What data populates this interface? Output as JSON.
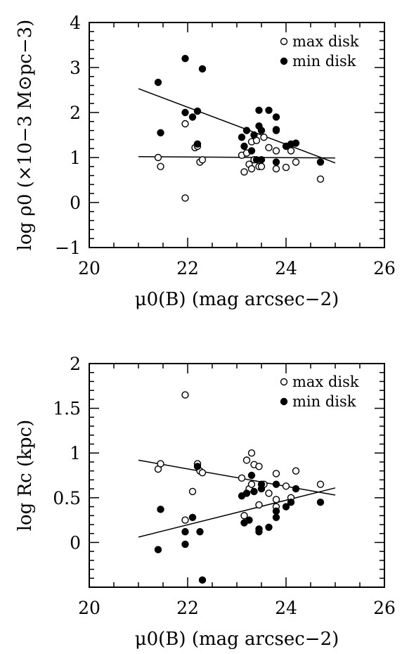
{
  "chart_data": [
    {
      "type": "scatter",
      "xlabel": "μ0(B) (mag arcsec−2)",
      "ylabel": "log ρ0 (×10−3 M⊙pc−3)",
      "xlim": [
        20,
        26
      ],
      "ylim": [
        -1,
        4
      ],
      "x_ticks": [
        "20",
        "22",
        "24",
        "26"
      ],
      "y_ticks": [
        "−1",
        "0",
        "1",
        "2",
        "3",
        "4"
      ],
      "legend_position": "top-right",
      "series": [
        {
          "name": "max disk",
          "marker": "open-circle",
          "points": [
            [
              21.4,
              1.0
            ],
            [
              21.45,
              0.8
            ],
            [
              21.95,
              1.75
            ],
            [
              21.95,
              0.1
            ],
            [
              22.15,
              1.22
            ],
            [
              22.2,
              1.25
            ],
            [
              22.25,
              0.9
            ],
            [
              22.3,
              0.95
            ],
            [
              23.1,
              1.05
            ],
            [
              23.15,
              0.68
            ],
            [
              23.2,
              1.1
            ],
            [
              23.25,
              0.85
            ],
            [
              23.3,
              1.35
            ],
            [
              23.3,
              0.75
            ],
            [
              23.35,
              0.95
            ],
            [
              23.4,
              1.38
            ],
            [
              23.45,
              0.8
            ],
            [
              23.5,
              0.8
            ],
            [
              23.55,
              1.45
            ],
            [
              23.65,
              1.22
            ],
            [
              23.8,
              1.62
            ],
            [
              23.8,
              1.15
            ],
            [
              23.8,
              0.75
            ],
            [
              24.0,
              0.78
            ],
            [
              24.1,
              1.15
            ],
            [
              24.2,
              0.9
            ],
            [
              24.7,
              0.52
            ]
          ]
        },
        {
          "name": "min disk",
          "marker": "filled-circle",
          "points": [
            [
              21.4,
              2.67
            ],
            [
              21.45,
              1.55
            ],
            [
              21.95,
              3.2
            ],
            [
              21.95,
              2.0
            ],
            [
              22.1,
              1.9
            ],
            [
              22.2,
              2.03
            ],
            [
              22.2,
              1.3
            ],
            [
              22.3,
              2.97
            ],
            [
              23.1,
              1.45
            ],
            [
              23.15,
              1.25
            ],
            [
              23.2,
              1.6
            ],
            [
              23.3,
              1.15
            ],
            [
              23.35,
              1.5
            ],
            [
              23.4,
              0.95
            ],
            [
              23.45,
              1.7
            ],
            [
              23.45,
              2.05
            ],
            [
              23.5,
              1.6
            ],
            [
              23.5,
              0.95
            ],
            [
              23.65,
              2.05
            ],
            [
              23.8,
              1.9
            ],
            [
              23.8,
              1.6
            ],
            [
              23.8,
              0.9
            ],
            [
              24.0,
              1.25
            ],
            [
              24.1,
              1.3
            ],
            [
              24.2,
              1.32
            ],
            [
              24.7,
              0.9
            ]
          ]
        }
      ],
      "fit_lines": [
        {
          "x": [
            21.0,
            25.0
          ],
          "y": [
            2.53,
            0.88
          ]
        },
        {
          "x": [
            21.0,
            25.0
          ],
          "y": [
            1.02,
            0.99
          ]
        }
      ]
    },
    {
      "type": "scatter",
      "xlabel": "μ0(B) (mag arcsec−2)",
      "ylabel": "log Rc (kpc)",
      "xlim": [
        20,
        26
      ],
      "ylim": [
        -0.5,
        2
      ],
      "x_ticks": [
        "20",
        "22",
        "24",
        "26"
      ],
      "y_ticks": [
        "0",
        "0.5",
        "1",
        "1.5",
        "2"
      ],
      "legend_position": "top-right",
      "series": [
        {
          "name": "max disk",
          "marker": "open-circle",
          "points": [
            [
              21.4,
              0.82
            ],
            [
              21.45,
              0.88
            ],
            [
              21.95,
              1.65
            ],
            [
              21.95,
              0.25
            ],
            [
              22.1,
              0.57
            ],
            [
              22.2,
              0.88
            ],
            [
              22.25,
              0.8
            ],
            [
              22.3,
              0.78
            ],
            [
              23.1,
              0.72
            ],
            [
              23.15,
              0.3
            ],
            [
              23.2,
              0.92
            ],
            [
              23.25,
              0.6
            ],
            [
              23.3,
              1.0
            ],
            [
              23.3,
              0.65
            ],
            [
              23.35,
              0.87
            ],
            [
              23.45,
              0.85
            ],
            [
              23.45,
              0.42
            ],
            [
              23.55,
              0.65
            ],
            [
              23.65,
              0.55
            ],
            [
              23.8,
              0.77
            ],
            [
              23.8,
              0.48
            ],
            [
              23.8,
              0.4
            ],
            [
              24.0,
              0.63
            ],
            [
              24.1,
              0.5
            ],
            [
              24.2,
              0.8
            ],
            [
              24.7,
              0.65
            ]
          ]
        },
        {
          "name": "min disk",
          "marker": "filled-circle",
          "points": [
            [
              21.4,
              -0.08
            ],
            [
              21.45,
              0.37
            ],
            [
              21.95,
              0.12
            ],
            [
              21.95,
              -0.02
            ],
            [
              22.1,
              0.28
            ],
            [
              22.2,
              0.85
            ],
            [
              22.25,
              0.12
            ],
            [
              22.3,
              -0.42
            ],
            [
              23.1,
              0.52
            ],
            [
              23.15,
              0.22
            ],
            [
              23.2,
              0.55
            ],
            [
              23.25,
              0.25
            ],
            [
              23.3,
              0.75
            ],
            [
              23.35,
              0.57
            ],
            [
              23.45,
              0.15
            ],
            [
              23.45,
              0.12
            ],
            [
              23.5,
              0.65
            ],
            [
              23.5,
              0.6
            ],
            [
              23.65,
              0.17
            ],
            [
              23.8,
              0.65
            ],
            [
              23.8,
              0.35
            ],
            [
              23.8,
              0.28
            ],
            [
              24.0,
              0.4
            ],
            [
              24.1,
              0.45
            ],
            [
              24.2,
              0.6
            ],
            [
              24.7,
              0.45
            ]
          ]
        }
      ],
      "fit_lines": [
        {
          "x": [
            21.0,
            25.0
          ],
          "y": [
            0.92,
            0.53
          ]
        },
        {
          "x": [
            21.0,
            25.0
          ],
          "y": [
            0.06,
            0.61
          ]
        }
      ]
    }
  ]
}
